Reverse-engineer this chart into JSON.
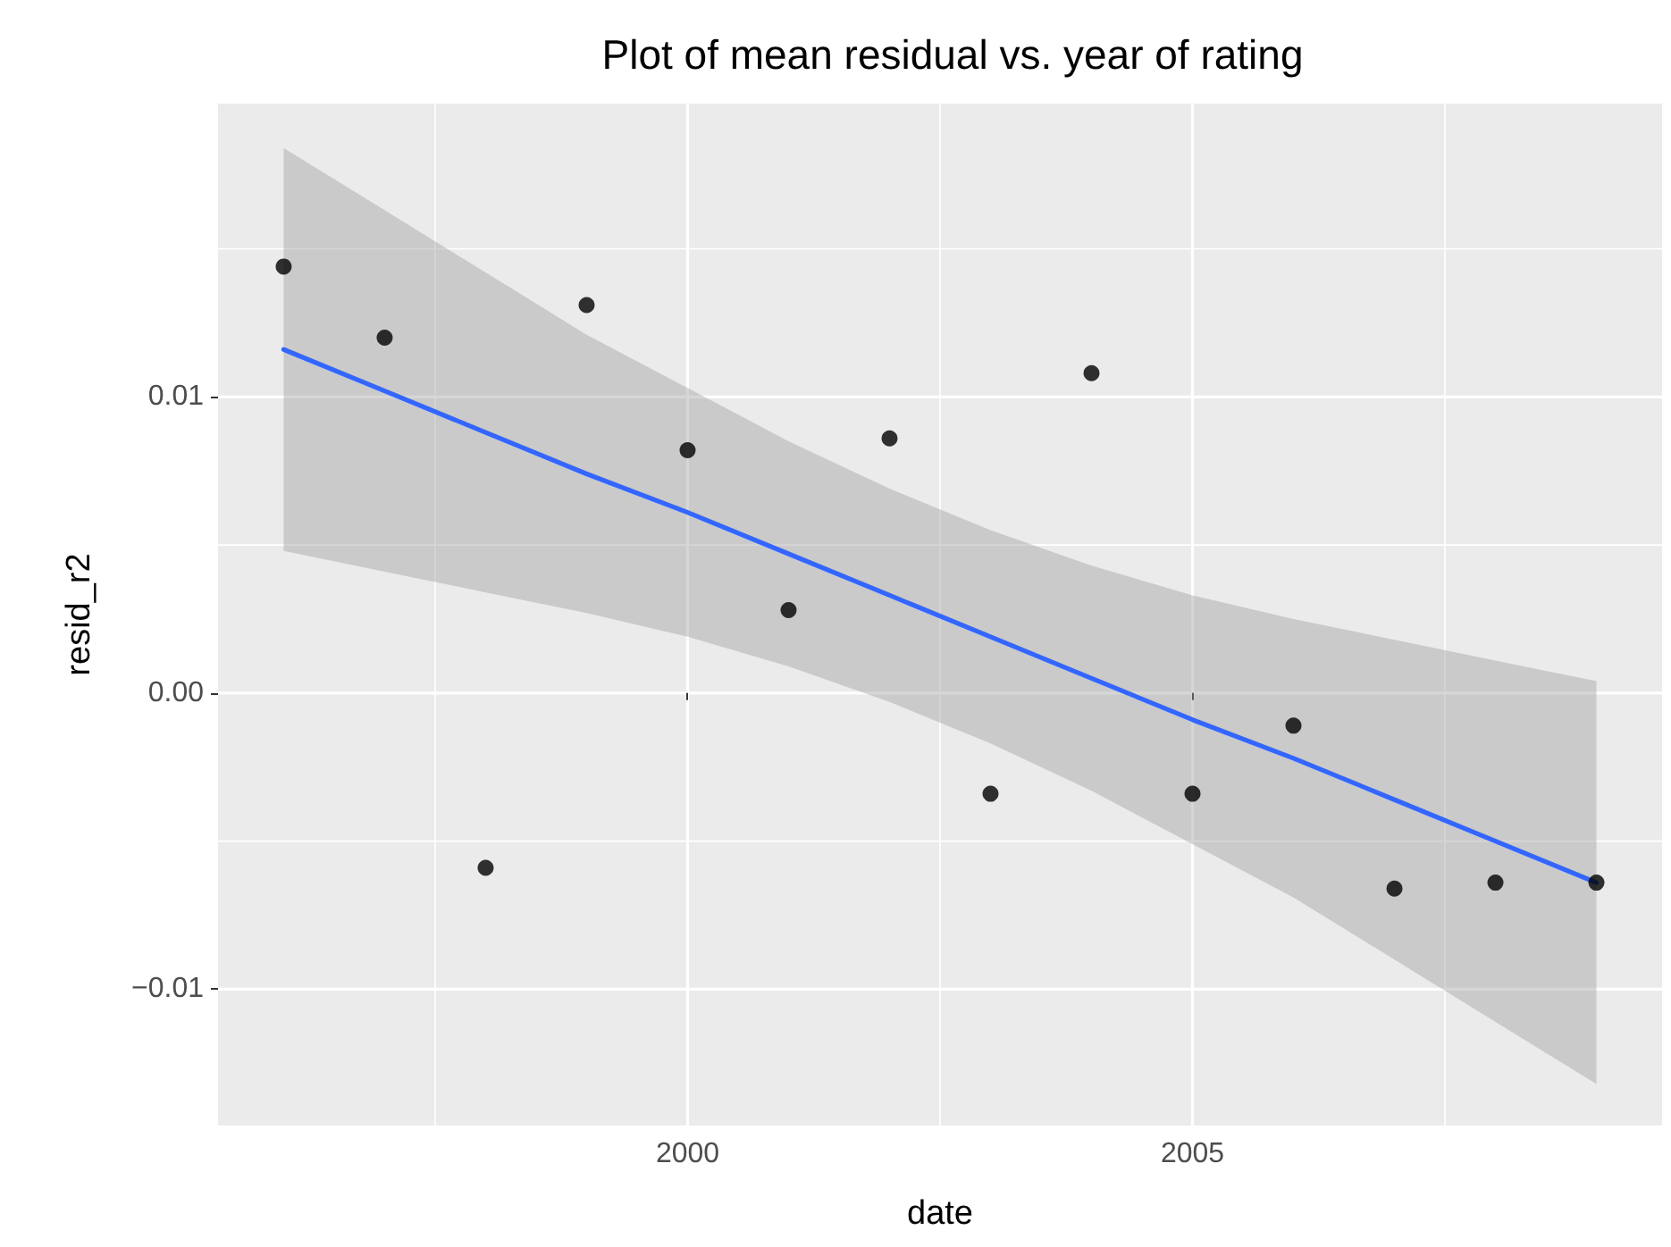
{
  "chart_data": {
    "type": "scatter",
    "title": "Plot of mean residual vs. year of rating",
    "xlabel": "date",
    "ylabel": "resid_r2",
    "xlim": [
      1995.35,
      2009.65
    ],
    "ylim": [
      -0.0146,
      0.0199
    ],
    "xticks": [
      {
        "value": 1997.5,
        "label": null
      },
      {
        "value": 2000,
        "label": "2000"
      },
      {
        "value": 2002.5,
        "label": null
      },
      {
        "value": 2005,
        "label": "2005"
      },
      {
        "value": 2007.5,
        "label": null
      }
    ],
    "yticks": [
      {
        "value": -0.01,
        "label": "−0.01"
      },
      {
        "value": -0.005,
        "label": null
      },
      {
        "value": 0,
        "label": "0.00"
      },
      {
        "value": 0.005,
        "label": null
      },
      {
        "value": 0.01,
        "label": "0.01"
      },
      {
        "value": 0.015,
        "label": null
      }
    ],
    "grid": true,
    "series": [
      {
        "marker": "circle",
        "color": "#000000",
        "x": [
          1996,
          1997,
          1998,
          1999,
          2000,
          2001,
          2002,
          2003,
          2004,
          2005,
          2006,
          2007,
          2008,
          2009
        ],
        "values": [
          0.0144,
          0.012,
          -0.0059,
          0.0131,
          0.0082,
          0.0028,
          0.0086,
          -0.0034,
          0.0108,
          -0.0034,
          -0.0011,
          -0.0066,
          -0.0064,
          -0.0064
        ]
      },
      {
        "type": "line",
        "marker": "none",
        "line_style": "solid",
        "color": "#3366ff",
        "x": [
          1996,
          1997,
          1998,
          1999,
          2000,
          2001,
          2002,
          2003,
          2004,
          2005,
          2006,
          2007,
          2008,
          2009
        ],
        "values": [
          0.0116,
          0.0102,
          0.0088,
          0.0074,
          0.0061,
          0.0047,
          0.0033,
          0.0019,
          0.0005,
          -0.0009,
          -0.0022,
          -0.0036,
          -0.005,
          -0.0064
        ],
        "lower": [
          0.0048,
          0.0041,
          0.0034,
          0.0027,
          0.0019,
          0.0009,
          -0.0003,
          -0.0017,
          -0.0033,
          -0.0051,
          -0.0069,
          -0.009,
          -0.0111,
          -0.0132
        ],
        "upper": [
          0.0184,
          0.0163,
          0.0142,
          0.0121,
          0.0103,
          0.0085,
          0.0069,
          0.0055,
          0.0043,
          0.0033,
          0.0025,
          0.0018,
          0.0011,
          0.0004
        ]
      }
    ]
  }
}
